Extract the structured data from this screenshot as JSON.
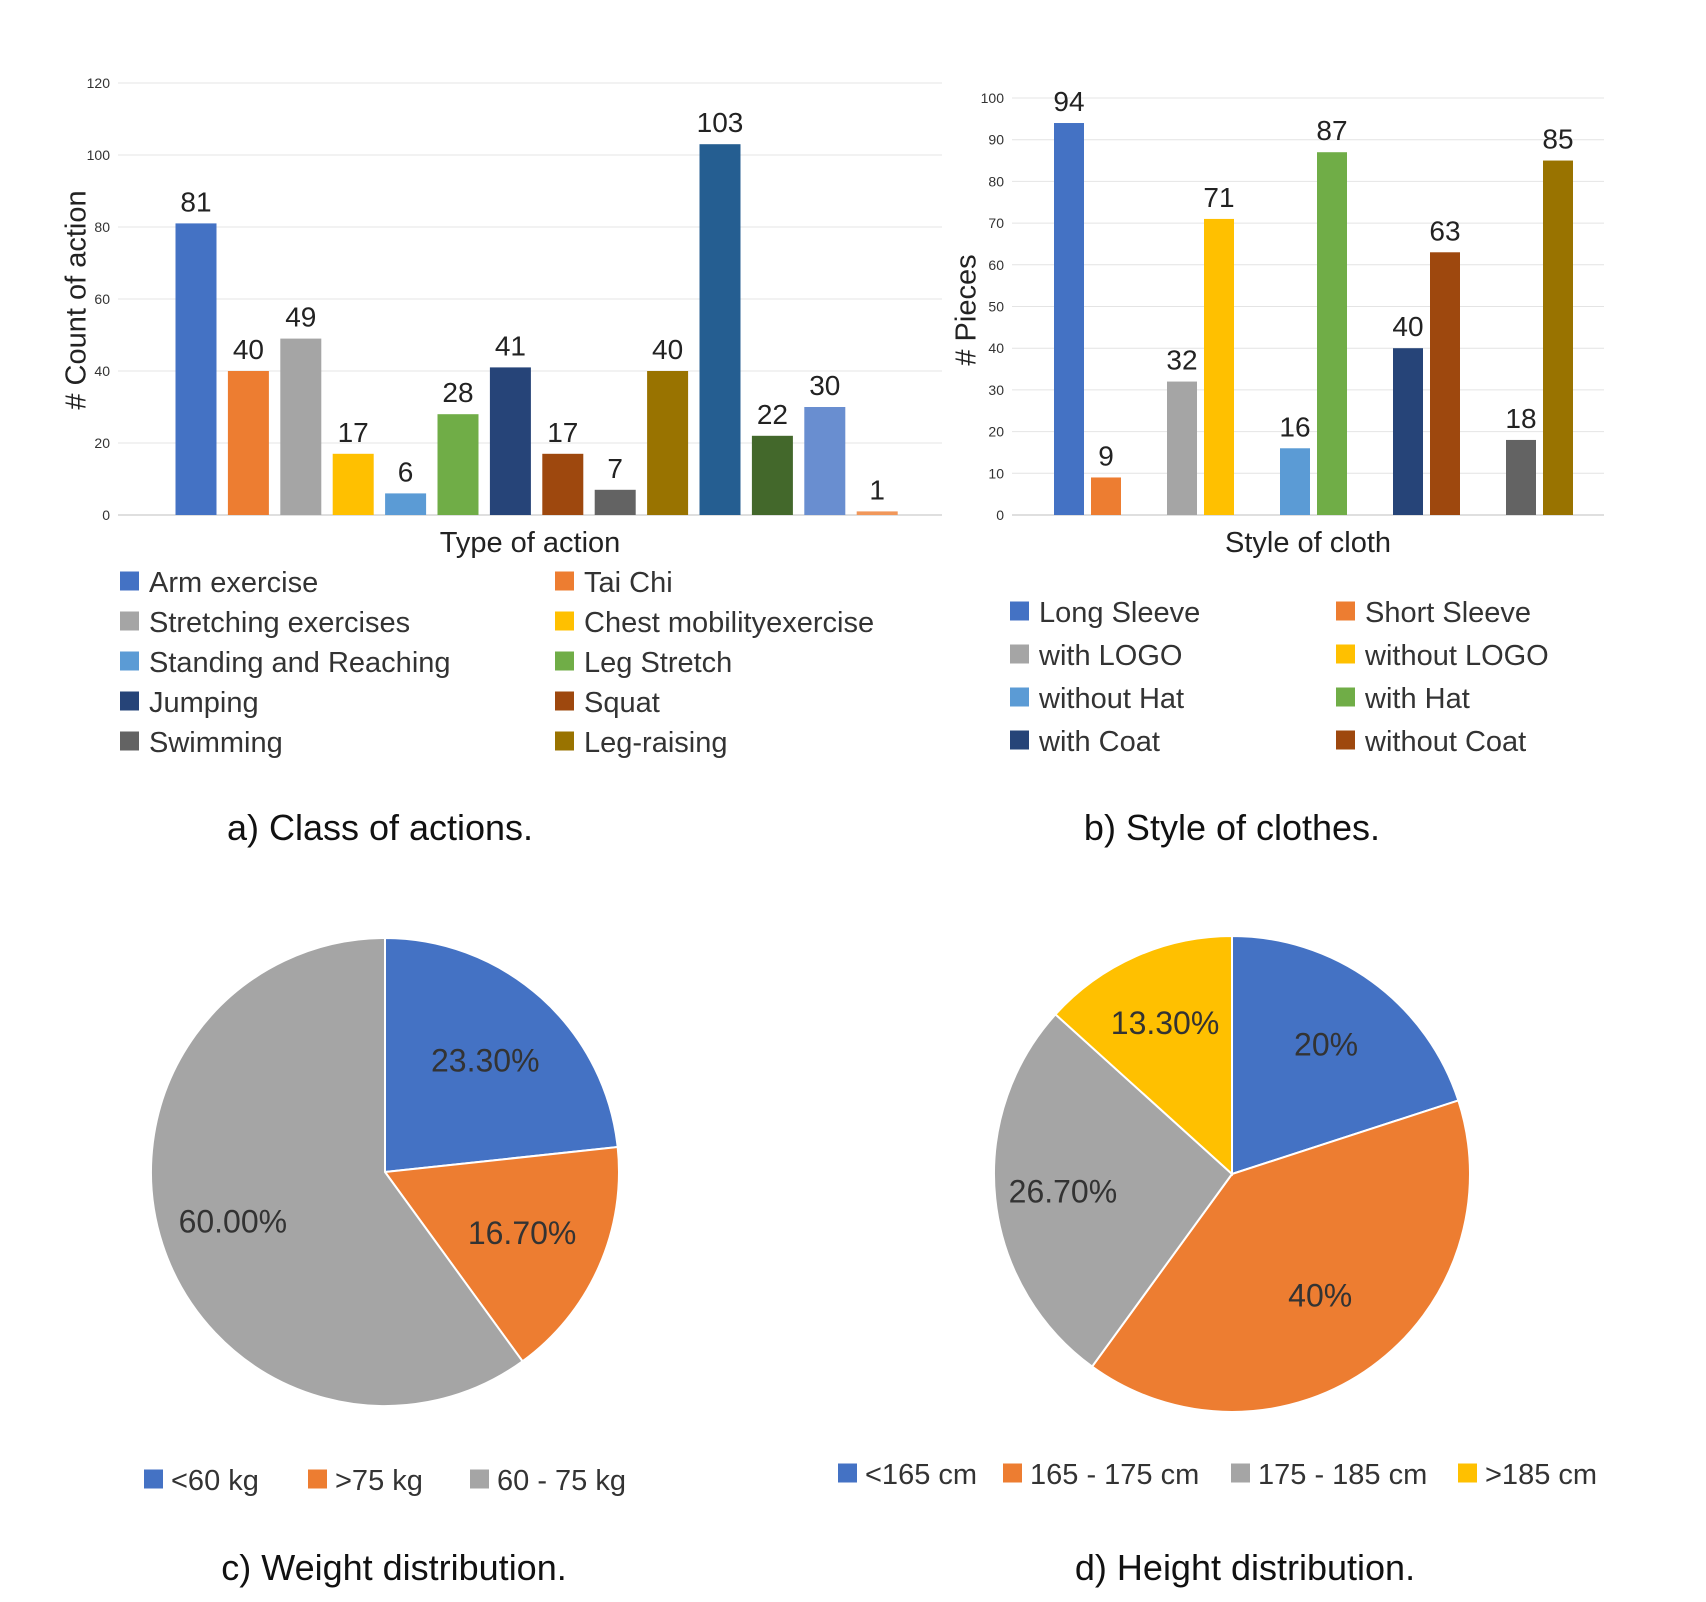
{
  "chart_data": [
    {
      "type": "bar",
      "xlabel": "Type of action",
      "ylabel": "# Count of action",
      "ylim": [
        0,
        120
      ],
      "yticks": [
        0,
        20,
        40,
        60,
        80,
        100,
        120
      ],
      "grid": true,
      "caption": "a) Class of actions.",
      "series": [
        {
          "name": "Arm exercise",
          "value": 81,
          "color": "#4472C4"
        },
        {
          "name": "Tai Chi",
          "value": 40,
          "color": "#ED7D31"
        },
        {
          "name": "Stretching exercises",
          "value": 49,
          "color": "#A5A5A5"
        },
        {
          "name": "Chest mobilityexercise",
          "value": 17,
          "color": "#FFC000"
        },
        {
          "name": "Standing and Reaching",
          "value": 6,
          "color": "#5B9BD5"
        },
        {
          "name": "Leg Stretch",
          "value": 28,
          "color": "#70AD47"
        },
        {
          "name": "Jumping",
          "value": 41,
          "color": "#264478"
        },
        {
          "name": "Squat",
          "value": 17,
          "color": "#9E480E"
        },
        {
          "name": "Swimming",
          "value": 7,
          "color": "#636363"
        },
        {
          "name": "Leg-raising",
          "value": 40,
          "color": "#997300"
        },
        {
          "name": "",
          "value": 103,
          "color": "#255E91"
        },
        {
          "name": "",
          "value": 22,
          "color": "#43682B"
        },
        {
          "name": "",
          "value": 30,
          "color": "#698ED0"
        },
        {
          "name": "",
          "value": 1,
          "color": "#F1975A"
        }
      ]
    },
    {
      "type": "bar",
      "xlabel": "Style of cloth",
      "ylabel": "# Pieces",
      "ylim": [
        0,
        100
      ],
      "yticks": [
        0,
        10,
        20,
        30,
        40,
        50,
        60,
        70,
        80,
        90,
        100
      ],
      "grid": true,
      "caption": "b) Style of clothes.",
      "series": [
        {
          "name": "Long Sleeve",
          "value": 94,
          "color": "#4472C4"
        },
        {
          "name": "Short Sleeve",
          "value": 9,
          "color": "#ED7D31"
        },
        {
          "name": "with LOGO",
          "value": 32,
          "color": "#A5A5A5"
        },
        {
          "name": "without LOGO",
          "value": 71,
          "color": "#FFC000"
        },
        {
          "name": "without Hat",
          "value": 16,
          "color": "#5B9BD5"
        },
        {
          "name": "with Hat",
          "value": 87,
          "color": "#70AD47"
        },
        {
          "name": "with Coat",
          "value": 40,
          "color": "#264478"
        },
        {
          "name": "without Coat",
          "value": 63,
          "color": "#9E480E"
        },
        {
          "name": "",
          "value": 18,
          "color": "#636363"
        },
        {
          "name": "",
          "value": 85,
          "color": "#997300"
        }
      ]
    },
    {
      "type": "pie",
      "caption": "c) Weight distribution.",
      "legend_position": "bottom",
      "slices": [
        {
          "name": "<60 kg",
          "value": 23.3,
          "label": "23.30%",
          "color": "#4472C4"
        },
        {
          "name": ">75 kg",
          "value": 16.7,
          "label": "16.70%",
          "color": "#ED7D31"
        },
        {
          "name": "60 - 75 kg",
          "value": 60.0,
          "label": "60.00%",
          "color": "#A5A5A5"
        }
      ]
    },
    {
      "type": "pie",
      "caption": "d) Height distribution.",
      "legend_position": "bottom",
      "slices": [
        {
          "name": "<165 cm",
          "value": 20,
          "label": "20%",
          "color": "#4472C4"
        },
        {
          "name": "165 - 175 cm",
          "value": 40,
          "label": "40%",
          "color": "#ED7D31"
        },
        {
          "name": "175 - 185 cm",
          "value": 26.7,
          "label": "26.70%",
          "color": "#A5A5A5"
        },
        {
          "name": ">185 cm",
          "value": 13.3,
          "label": "13.30%",
          "color": "#FFC000"
        }
      ]
    }
  ]
}
